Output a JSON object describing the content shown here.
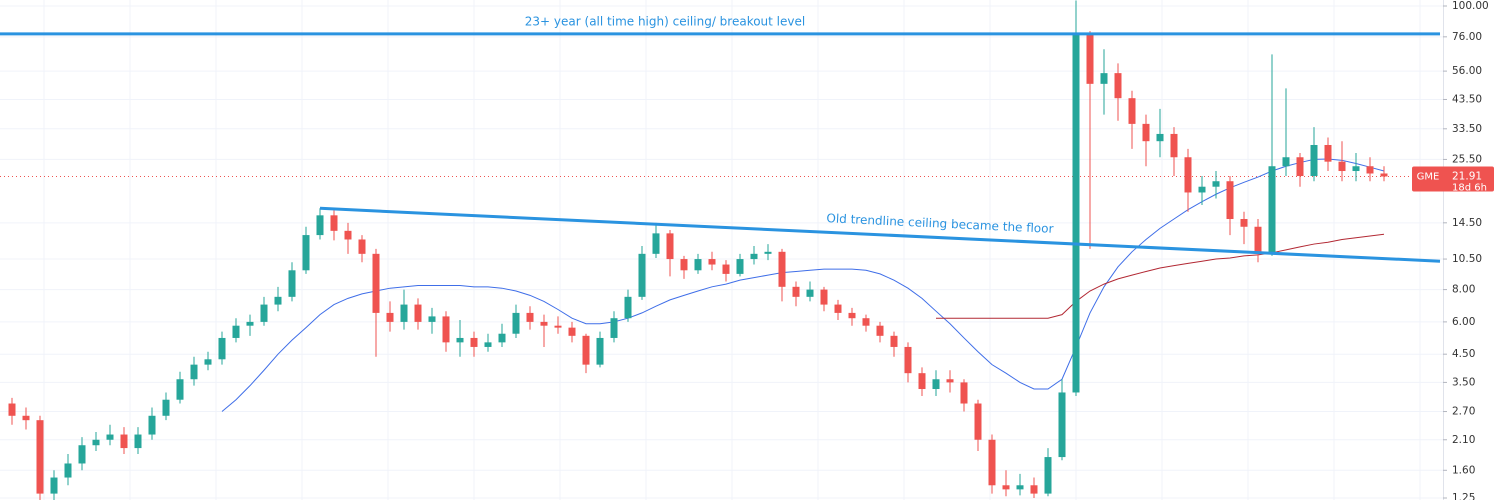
{
  "chart_data": {
    "type": "candlestick",
    "categories": [
      null,
      null,
      null,
      null,
      null,
      null,
      null,
      null,
      null,
      null,
      null,
      null,
      null,
      null,
      null,
      null,
      null,
      null,
      null,
      null,
      null,
      null,
      null,
      null,
      null,
      null,
      null,
      null,
      null,
      null,
      null,
      null,
      null,
      null,
      null,
      null,
      null,
      null,
      null,
      null,
      null,
      null,
      null,
      null,
      null,
      null,
      null,
      null,
      null,
      null,
      null,
      null,
      null,
      null,
      null,
      null,
      null,
      null,
      null,
      null,
      null,
      null,
      null,
      null,
      null,
      null,
      null,
      null,
      null,
      null,
      null,
      null,
      null,
      null,
      null,
      null,
      null,
      null,
      null,
      null,
      null,
      null,
      null,
      null,
      null,
      null,
      null,
      null,
      null,
      null,
      null,
      null,
      null,
      null,
      null,
      null,
      null,
      null,
      null
    ],
    "open": [
      2.9,
      2.6,
      2.5,
      1.3,
      1.5,
      1.7,
      2.0,
      2.1,
      2.2,
      1.95,
      2.2,
      2.6,
      3.0,
      3.6,
      4.1,
      4.3,
      5.2,
      5.8,
      6.0,
      7.0,
      7.5,
      9.5,
      13.0,
      15.5,
      13.5,
      12.5,
      11.0,
      6.5,
      6.0,
      7.0,
      6.0,
      6.3,
      5.0,
      5.2,
      4.8,
      5.0,
      5.4,
      6.5,
      6.0,
      5.8,
      5.7,
      5.3,
      4.1,
      5.2,
      6.2,
      7.5,
      11.0,
      13.2,
      10.5,
      9.5,
      10.5,
      10.0,
      9.2,
      10.5,
      11.0,
      11.2,
      8.2,
      7.5,
      8.0,
      7.0,
      6.5,
      6.2,
      5.8,
      5.3,
      4.8,
      3.8,
      3.3,
      3.6,
      3.5,
      2.9,
      2.1,
      1.4,
      1.35,
      1.4,
      1.3,
      1.8,
      3.2,
      78,
      50,
      55,
      44,
      35,
      30,
      32,
      26,
      19,
      20,
      21,
      15,
      14,
      11,
      24,
      26,
      22,
      29,
      25,
      23,
      24,
      22.5
    ],
    "high": [
      3.05,
      2.8,
      2.6,
      1.6,
      1.85,
      2.15,
      2.25,
      2.4,
      2.35,
      2.35,
      2.8,
      3.2,
      3.85,
      4.4,
      4.6,
      5.5,
      6.2,
      6.4,
      7.5,
      8.2,
      10.2,
      14.0,
      16.5,
      16.2,
      14.5,
      13.0,
      11.5,
      7.2,
      8.0,
      7.4,
      6.8,
      6.6,
      6.1,
      5.5,
      5.4,
      5.9,
      7.0,
      6.9,
      6.4,
      6.3,
      6.0,
      5.4,
      5.5,
      6.6,
      8.0,
      11.8,
      14.5,
      13.6,
      10.8,
      11.0,
      11.2,
      10.4,
      11.0,
      11.8,
      12.0,
      11.5,
      8.6,
      8.6,
      8.2,
      7.3,
      6.8,
      6.4,
      6.0,
      5.5,
      5.0,
      4.0,
      3.9,
      3.9,
      3.6,
      3.0,
      2.2,
      1.6,
      1.55,
      1.5,
      1.95,
      3.6,
      105,
      80,
      68,
      60,
      47,
      38,
      40,
      34,
      28,
      22,
      23,
      22,
      16,
      15,
      65,
      48,
      27,
      34,
      31,
      30,
      27,
      26,
      24
    ],
    "low": [
      2.4,
      2.3,
      1.2,
      1.22,
      1.4,
      1.6,
      1.9,
      2.0,
      1.85,
      1.85,
      2.1,
      2.5,
      2.9,
      3.4,
      3.9,
      4.1,
      5.0,
      5.3,
      5.8,
      6.6,
      7.2,
      9.2,
      12.5,
      12.4,
      11.0,
      10.2,
      4.4,
      5.5,
      5.6,
      5.6,
      5.4,
      4.6,
      4.4,
      4.4,
      4.6,
      4.8,
      5.2,
      5.6,
      4.8,
      5.4,
      5.0,
      3.8,
      4.0,
      5.0,
      6.0,
      7.3,
      10.6,
      9.0,
      8.8,
      9.2,
      9.5,
      8.6,
      9.0,
      10.0,
      10.4,
      7.2,
      6.9,
      7.2,
      6.6,
      6.1,
      5.8,
      5.5,
      5.0,
      4.4,
      3.5,
      3.1,
      3.1,
      3.2,
      2.7,
      1.9,
      1.3,
      1.27,
      1.28,
      1.25,
      1.27,
      1.75,
      3.1,
      11.5,
      38,
      36,
      28,
      24,
      26,
      22,
      16,
      17,
      18,
      13,
      12,
      10.2,
      10.8,
      22,
      20,
      21,
      23,
      21,
      21,
      21,
      21
    ],
    "close": [
      2.6,
      2.5,
      1.3,
      1.5,
      1.7,
      2.0,
      2.1,
      2.2,
      1.95,
      2.2,
      2.6,
      3.0,
      3.6,
      4.1,
      4.3,
      5.2,
      5.8,
      6.0,
      7.0,
      7.5,
      9.5,
      13.0,
      15.5,
      13.5,
      12.5,
      11.0,
      6.5,
      6.0,
      7.0,
      6.0,
      6.3,
      5.0,
      5.2,
      4.8,
      5.0,
      5.4,
      6.5,
      6.0,
      5.8,
      5.7,
      5.3,
      4.1,
      5.2,
      6.2,
      7.5,
      11.0,
      13.2,
      10.5,
      9.5,
      10.5,
      10.0,
      9.2,
      10.5,
      11.0,
      11.2,
      8.2,
      7.5,
      8.0,
      7.0,
      6.5,
      6.2,
      5.8,
      5.3,
      4.8,
      3.8,
      3.3,
      3.6,
      3.5,
      2.9,
      2.1,
      1.4,
      1.35,
      1.4,
      1.3,
      1.8,
      3.2,
      78,
      50,
      55,
      44,
      35,
      30,
      32,
      26,
      19,
      20,
      21,
      15,
      14,
      11,
      24,
      26,
      22,
      29,
      25,
      23,
      24,
      22.5,
      21.91
    ],
    "up_color": "#26a69a",
    "down_color": "#ef5350",
    "moving_averages": [
      {
        "color": "#3f6ee8",
        "values": [
          null,
          null,
          null,
          null,
          null,
          null,
          null,
          null,
          null,
          null,
          null,
          null,
          null,
          null,
          null,
          2.7,
          3.0,
          3.4,
          3.9,
          4.5,
          5.1,
          5.7,
          6.4,
          7.0,
          7.4,
          7.7,
          7.9,
          8.1,
          8.2,
          8.3,
          8.3,
          8.3,
          8.3,
          8.2,
          8.2,
          8.1,
          7.9,
          7.6,
          7.2,
          6.7,
          6.2,
          5.9,
          5.9,
          6.0,
          6.2,
          6.5,
          6.9,
          7.3,
          7.6,
          7.9,
          8.2,
          8.4,
          8.7,
          8.9,
          9.1,
          9.3,
          9.4,
          9.5,
          9.6,
          9.6,
          9.6,
          9.5,
          9.2,
          8.7,
          8.1,
          7.4,
          6.6,
          5.9,
          5.2,
          4.6,
          4.1,
          3.8,
          3.5,
          3.3,
          3.3,
          3.6,
          4.8,
          6.5,
          8.2,
          9.8,
          11.2,
          12.5,
          13.8,
          15.0,
          16.3,
          17.5,
          18.7,
          19.8,
          20.8,
          21.8,
          23.0,
          24.0,
          24.8,
          25.5,
          25.6,
          25.3,
          24.6,
          23.8,
          23.0
        ]
      },
      {
        "color": "#b22833",
        "values": [
          null,
          null,
          null,
          null,
          null,
          null,
          null,
          null,
          null,
          null,
          null,
          null,
          null,
          null,
          null,
          null,
          null,
          null,
          null,
          null,
          null,
          null,
          null,
          null,
          null,
          null,
          null,
          null,
          null,
          null,
          null,
          null,
          null,
          null,
          null,
          null,
          null,
          null,
          null,
          null,
          null,
          null,
          null,
          null,
          null,
          null,
          null,
          null,
          null,
          null,
          null,
          null,
          null,
          null,
          null,
          null,
          null,
          null,
          null,
          null,
          null,
          null,
          null,
          null,
          null,
          null,
          6.2,
          6.2,
          6.2,
          6.2,
          6.2,
          6.2,
          6.2,
          6.2,
          6.2,
          6.4,
          7.2,
          7.9,
          8.4,
          8.8,
          9.1,
          9.4,
          9.7,
          9.9,
          10.1,
          10.3,
          10.5,
          10.6,
          10.8,
          10.9,
          11.1,
          11.4,
          11.7,
          12.0,
          12.2,
          12.5,
          12.7,
          12.9,
          13.1
        ]
      }
    ],
    "log_scale": true,
    "ylim": [
      1.228,
      105.5
    ],
    "yticks": [
      {
        "value": 100,
        "label": "100.00"
      },
      {
        "value": 76,
        "label": "76.00"
      },
      {
        "value": 56,
        "label": "56.00"
      },
      {
        "value": 43.5,
        "label": "43.50"
      },
      {
        "value": 33.5,
        "label": "33.50"
      },
      {
        "value": 25.5,
        "label": "25.50"
      },
      {
        "value": 14.5,
        "label": "14.50"
      },
      {
        "value": 10.5,
        "label": "10.50"
      },
      {
        "value": 8,
        "label": "8.00"
      },
      {
        "value": 6,
        "label": "6.00"
      },
      {
        "value": 4.5,
        "label": "4.50"
      },
      {
        "value": 3.5,
        "label": "3.50"
      },
      {
        "value": 2.7,
        "label": "2.70"
      },
      {
        "value": 2.1,
        "label": "2.10"
      },
      {
        "value": 1.6,
        "label": "1.60"
      },
      {
        "value": 1.25,
        "label": "1.25"
      }
    ],
    "grid": true,
    "trendlines": [
      {
        "text": "23+ year (all time high) ceiling/ breakout level",
        "x": [
          -1,
          102
        ],
        "y": [
          78,
          78
        ],
        "color": "#2a93e0"
      },
      {
        "text": "Old trendline ceiling became the floor",
        "x": [
          22,
          102
        ],
        "y": [
          16.5,
          10.3
        ],
        "color": "#2a93e0"
      }
    ],
    "symbol": "GME",
    "last_price": 21.91,
    "countdown": "18d 6h"
  }
}
